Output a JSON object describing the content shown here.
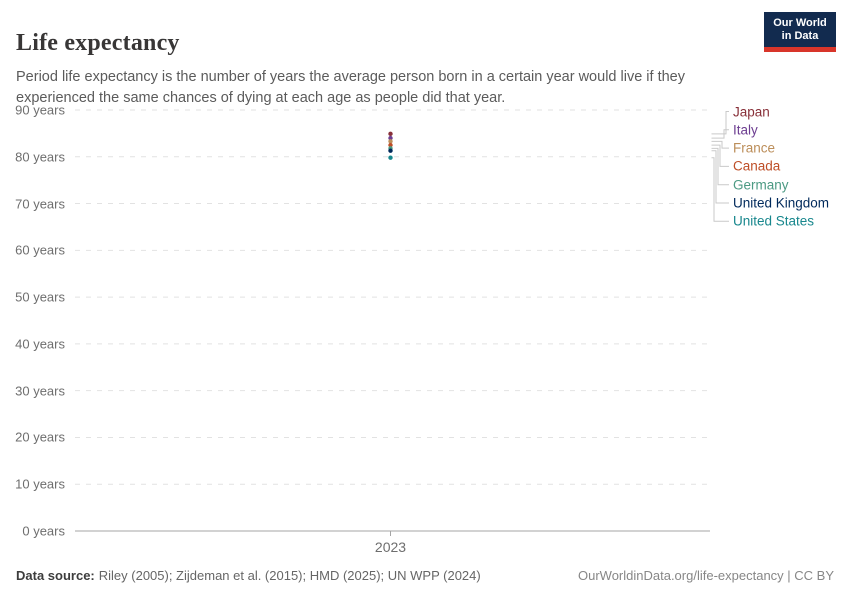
{
  "header": {
    "title": "Life expectancy",
    "subtitle": "Period life expectancy is the number of years the average person born in a certain year would live if they experienced the same chances of dying at each age as people did that year.",
    "logo": {
      "line1": "Our World",
      "line2": "in Data"
    }
  },
  "chart_data": {
    "type": "scatter",
    "title": "Life expectancy",
    "xlabel": "",
    "ylabel": "",
    "x": [
      2023
    ],
    "ylim": [
      0,
      90
    ],
    "grid": "horizontal-dashed",
    "legend_position": "right",
    "series": [
      {
        "name": "Japan",
        "color": "#883039",
        "values": [
          84.9
        ]
      },
      {
        "name": "Italy",
        "color": "#6D3E91",
        "values": [
          84.0
        ]
      },
      {
        "name": "France",
        "color": "#BC8E5A",
        "values": [
          83.3
        ]
      },
      {
        "name": "Canada",
        "color": "#BE4E27",
        "values": [
          82.5
        ]
      },
      {
        "name": "Germany",
        "color": "#4C9A83",
        "values": [
          81.8
        ]
      },
      {
        "name": "United Kingdom",
        "color": "#00295B",
        "values": [
          81.3
        ]
      },
      {
        "name": "United States",
        "color": "#18878D",
        "values": [
          79.8
        ]
      }
    ],
    "yticks": [
      {
        "value": 0,
        "label": "0 years"
      },
      {
        "value": 10,
        "label": "10 years"
      },
      {
        "value": 20,
        "label": "20 years"
      },
      {
        "value": 30,
        "label": "30 years"
      },
      {
        "value": 40,
        "label": "40 years"
      },
      {
        "value": 50,
        "label": "50 years"
      },
      {
        "value": 60,
        "label": "60 years"
      },
      {
        "value": 70,
        "label": "70 years"
      },
      {
        "value": 80,
        "label": "80 years"
      },
      {
        "value": 90,
        "label": "90 years"
      }
    ],
    "xticks": [
      {
        "value": 2023,
        "label": "2023"
      }
    ]
  },
  "footer": {
    "datasource_label": "Data source:",
    "datasource_text": "Riley (2005); Zijdeman et al. (2015); HMD (2025); UN WPP (2024)",
    "credit": "OurWorldinData.org/life-expectancy | CC BY"
  },
  "colors": {
    "logo_navy": "#122B4F",
    "logo_red": "#D8352A",
    "grid": "#E2E2E2",
    "axis": "#A5A5A5",
    "connector": "#C9C9C9",
    "muted_text": "#6E6E6E"
  }
}
